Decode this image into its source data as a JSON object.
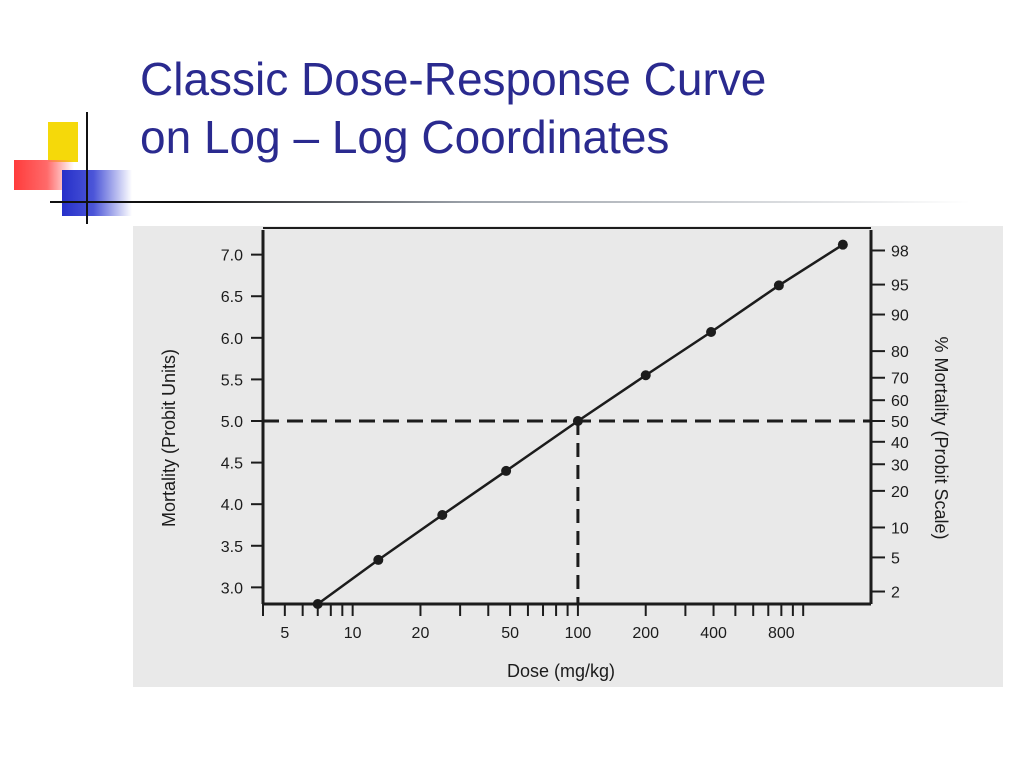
{
  "slide": {
    "title_line1": "Classic Dose-Response Curve",
    "title_line2": "on Log – Log Coordinates"
  },
  "colors": {
    "title": "#2a2a8f",
    "accent_yellow": "#f5d90a",
    "accent_red": "#ff3c3c",
    "accent_blue": "#2630c9",
    "plot_background": "#e9e9e9"
  },
  "chart_data": {
    "type": "line",
    "title": "",
    "xlabel": "Dose (mg/kg)",
    "ylabel": "Mortality (Probit Units)",
    "y2label": "% Mortality (Probit Scale)",
    "x_scale": "log",
    "x_ticks": [
      5,
      10,
      20,
      50,
      100,
      200,
      400,
      800
    ],
    "y_ticks": [
      "7.0",
      "6.5",
      "6.0",
      "5.5",
      "5.0",
      "4.5",
      "4.0",
      "3.5",
      "3.0"
    ],
    "y2_ticks": [
      "98",
      "95",
      "90",
      "80",
      "70",
      "60",
      "50",
      "40",
      "30",
      "20",
      "10",
      "5",
      "2"
    ],
    "y2_probits": [
      7.05,
      6.64,
      6.28,
      5.84,
      5.52,
      5.25,
      5.0,
      4.75,
      4.48,
      4.16,
      3.72,
      3.36,
      2.95
    ],
    "xlim": [
      4,
      2000
    ],
    "ylim": [
      2.8,
      7.2
    ],
    "grid": false,
    "series": [
      {
        "x": [
          7,
          13,
          25,
          48,
          100,
          200,
          390,
          780,
          1500
        ],
        "y": [
          2.8,
          3.33,
          3.87,
          4.4,
          5.0,
          5.55,
          6.07,
          6.63,
          7.12
        ]
      }
    ],
    "reference_lines": {
      "ed50_dose": 100,
      "ed50_probit": 5.0
    }
  }
}
